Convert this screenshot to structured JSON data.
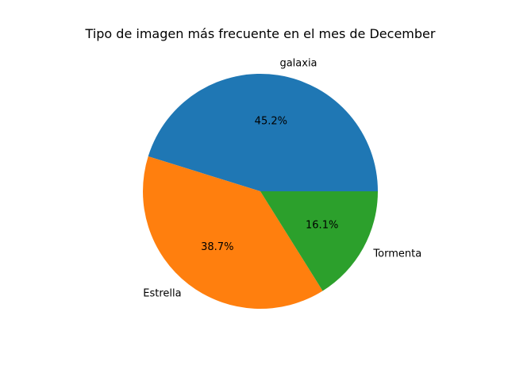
{
  "chart_data": {
    "type": "pie",
    "title": "Tipo de imagen más frecuente en el mes de December",
    "slices": [
      {
        "label": "galaxia",
        "value": 45.2,
        "pct_label": "45.2%",
        "color": "#1f77b4"
      },
      {
        "label": "Estrella",
        "value": 38.7,
        "pct_label": "38.7%",
        "color": "#ff7f0e"
      },
      {
        "label": "Tormenta",
        "value": 16.1,
        "pct_label": "16.1%",
        "color": "#2ca02c"
      }
    ],
    "start_angle_deg": 0,
    "direction": "counterclockwise"
  }
}
